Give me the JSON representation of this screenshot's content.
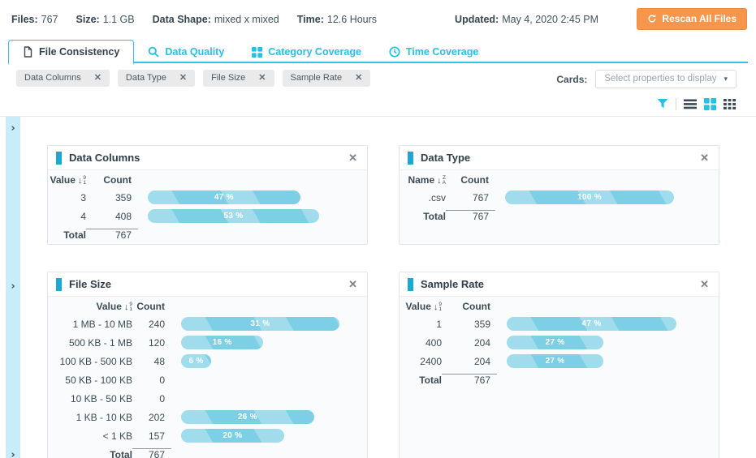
{
  "topbar": {
    "stats": [
      {
        "label": "Files:",
        "value": "767"
      },
      {
        "label": "Size:",
        "value": "1.1 GB"
      },
      {
        "label": "Data Shape:",
        "value": "mixed x mixed"
      },
      {
        "label": "Time:",
        "value": "12.6 Hours"
      }
    ],
    "updated_label": "Updated:",
    "updated_value": "May 4, 2020 2:45 PM",
    "rescan_button": "Rescan All Files"
  },
  "tabs": [
    {
      "label": "File Consistency"
    },
    {
      "label": "Data Quality"
    },
    {
      "label": "Category Coverage"
    },
    {
      "label": "Time Coverage"
    }
  ],
  "filters": {
    "chips": [
      "Data Columns",
      "Data Type",
      "File Size",
      "Sample Rate"
    ],
    "cards_label": "Cards:",
    "cards_dropdown": "Select properties to display",
    "caret": "▾"
  },
  "view_toolbar": {
    "icons": [
      "filter-icon",
      "list-view-icon",
      "grid-2-view-icon",
      "grid-3-view-icon"
    ],
    "active": "grid-2-view-icon"
  },
  "colors": {
    "accent_cyan": "#22c1e8",
    "card_accent": "#1ba9d2",
    "bar_fill": "#7ccfe5",
    "button_orange": "#f6954c",
    "side_strip": "#c9ecf9"
  },
  "cards": [
    {
      "title": "Data Columns",
      "col_value": "Value",
      "col_count": "Count",
      "sort_icon": [
        "9",
        "1"
      ],
      "rows": [
        {
          "value": "3",
          "count": "359",
          "pct": 47
        },
        {
          "value": "4",
          "count": "408",
          "pct": 53
        }
      ],
      "total_label": "Total",
      "total": "767"
    },
    {
      "title": "Data Type",
      "col_value": "Name",
      "col_count": "Count",
      "sort_icon": [
        "Z",
        "A"
      ],
      "rows": [
        {
          "value": ".csv",
          "count": "767",
          "pct": 100
        }
      ],
      "total_label": "Total",
      "total": "767"
    },
    {
      "title": "File Size",
      "col_value": "Value",
      "col_count": "Count",
      "sort_icon": [
        "9",
        "1"
      ],
      "rows": [
        {
          "value": "1 MB - 10 MB",
          "count": "240",
          "pct": 31
        },
        {
          "value": "500 KB - 1 MB",
          "count": "120",
          "pct": 16
        },
        {
          "value": "100 KB - 500 KB",
          "count": "48",
          "pct": 6
        },
        {
          "value": "50 KB - 100 KB",
          "count": "0",
          "pct": null
        },
        {
          "value": "10 KB - 50 KB",
          "count": "0",
          "pct": null
        },
        {
          "value": "1 KB - 10 KB",
          "count": "202",
          "pct": 26
        },
        {
          "value": "< 1 KB",
          "count": "157",
          "pct": 20
        }
      ],
      "total_label": "Total",
      "total": "767"
    },
    {
      "title": "Sample Rate",
      "col_value": "Value",
      "col_count": "Count",
      "sort_icon": [
        "9",
        "1"
      ],
      "rows": [
        {
          "value": "1",
          "count": "359",
          "pct": 47
        },
        {
          "value": "400",
          "count": "204",
          "pct": 27
        },
        {
          "value": "2400",
          "count": "204",
          "pct": 27
        }
      ],
      "total_label": "Total",
      "total": "767"
    }
  ]
}
